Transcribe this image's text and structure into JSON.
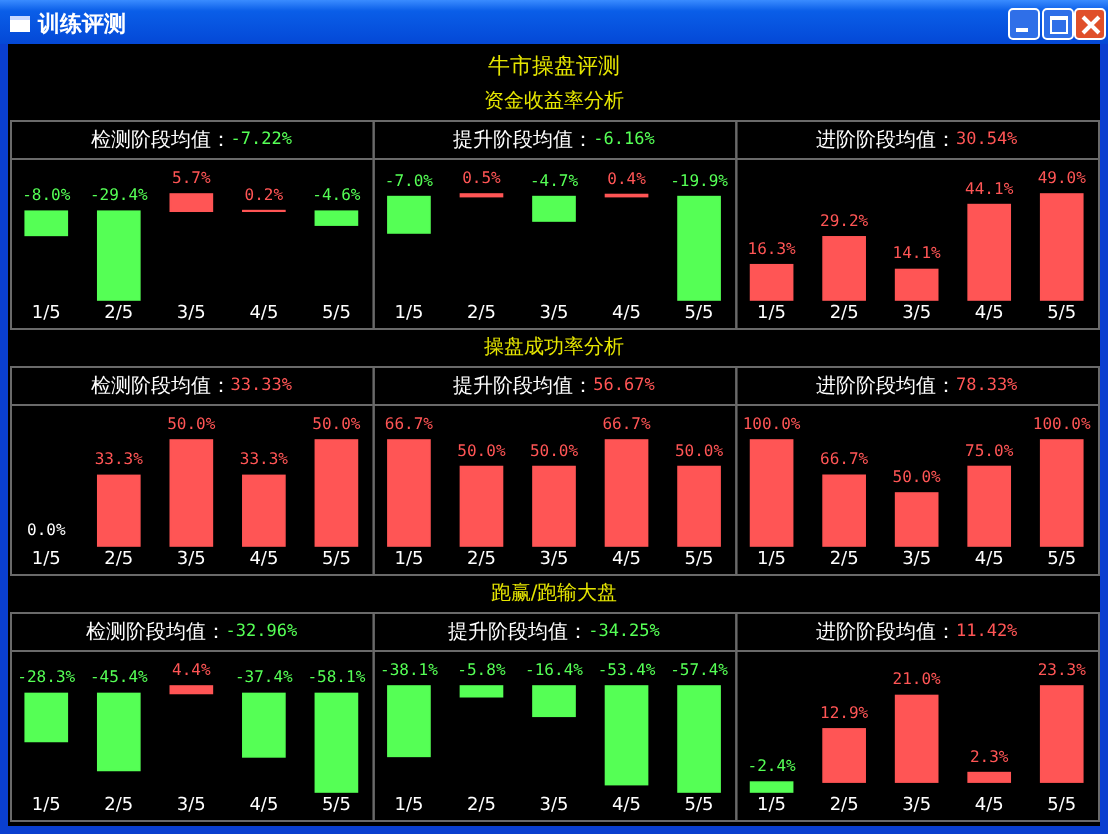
{
  "chart_data": [
    {
      "type": "other",
      "title": "训练评测"
    },
    {
      "type": "other",
      "title": "牛市操盘评测"
    },
    {
      "type": "other",
      "title": "资金收益率分析"
    },
    {
      "type": "bar",
      "title": "检测阶段均值：",
      "subtitle": "-7.22%",
      "categories": [
        "1/5",
        "2/5",
        "3/5",
        "4/5",
        "5/5"
      ],
      "values": [
        -8.0,
        -29.4,
        5.7,
        0.2,
        -4.6
      ],
      "colors": [
        "#55ff55",
        "#55ff55",
        "#ff5555",
        "#ff5555",
        "#55ff55"
      ],
      "value_labels": [
        "-8.0%",
        "-29.4%",
        "5.7%",
        "0.2%",
        "-4.6%"
      ]
    },
    {
      "type": "bar",
      "title": "提升阶段均值：",
      "subtitle": "-6.16%",
      "categories": [
        "1/5",
        "2/5",
        "3/5",
        "4/5",
        "5/5"
      ],
      "values": [
        -7.0,
        0.5,
        -4.7,
        0.4,
        -19.9
      ],
      "colors": [
        "#55ff55",
        "#ff5555",
        "#55ff55",
        "#ff5555",
        "#55ff55"
      ],
      "value_labels": [
        "-7.0%",
        "0.5%",
        "-4.7%",
        "0.4%",
        "-19.9%"
      ]
    },
    {
      "type": "bar",
      "title": "进阶阶段均值：",
      "subtitle": "30.54%",
      "categories": [
        "1/5",
        "2/5",
        "3/5",
        "4/5",
        "5/5"
      ],
      "values": [
        16.3,
        29.2,
        14.1,
        44.1,
        49.0
      ],
      "colors": [
        "#ff5555",
        "#ff5555",
        "#ff5555",
        "#ff5555",
        "#ff5555"
      ],
      "value_labels": [
        "16.3%",
        "29.2%",
        "14.1%",
        "44.1%",
        "49.0%"
      ]
    },
    {
      "type": "other",
      "title": "操盘成功率分析"
    },
    {
      "type": "bar",
      "title": "检测阶段均值：",
      "subtitle": "33.33%",
      "categories": [
        "1/5",
        "2/5",
        "3/5",
        "4/5",
        "5/5"
      ],
      "values": [
        0.0,
        33.3,
        50.0,
        33.3,
        50.0
      ],
      "colors": [
        "#ffffff",
        "#ff5555",
        "#ff5555",
        "#ff5555",
        "#ff5555"
      ],
      "value_labels": [
        "0.0%",
        "33.3%",
        "50.0%",
        "33.3%",
        "50.0%"
      ]
    },
    {
      "type": "bar",
      "title": "提升阶段均值：",
      "subtitle": "56.67%",
      "categories": [
        "1/5",
        "2/5",
        "3/5",
        "4/5",
        "5/5"
      ],
      "values": [
        66.7,
        50.0,
        50.0,
        66.7,
        50.0
      ],
      "colors": [
        "#ff5555",
        "#ff5555",
        "#ff5555",
        "#ff5555",
        "#ff5555"
      ],
      "value_labels": [
        "66.7%",
        "50.0%",
        "50.0%",
        "66.7%",
        "50.0%"
      ]
    },
    {
      "type": "bar",
      "title": "进阶阶段均值：",
      "subtitle": "78.33%",
      "categories": [
        "1/5",
        "2/5",
        "3/5",
        "4/5",
        "5/5"
      ],
      "values": [
        100.0,
        66.7,
        50.0,
        75.0,
        100.0
      ],
      "colors": [
        "#ff5555",
        "#ff5555",
        "#ff5555",
        "#ff5555",
        "#ff5555"
      ],
      "value_labels": [
        "100.0%",
        "66.7%",
        "50.0%",
        "75.0%",
        "100.0%"
      ]
    },
    {
      "type": "other",
      "title": "跑赢/跑输大盘"
    },
    {
      "type": "bar",
      "title": "检测阶段均值：",
      "subtitle": "-32.96%",
      "categories": [
        "1/5",
        "2/5",
        "3/5",
        "4/5",
        "5/5"
      ],
      "values": [
        -28.3,
        -45.4,
        4.4,
        -37.4,
        -58.1
      ],
      "colors": [
        "#55ff55",
        "#55ff55",
        "#ff5555",
        "#55ff55",
        "#55ff55"
      ],
      "value_labels": [
        "-28.3%",
        "-45.4%",
        "4.4%",
        "-37.4%",
        "-58.1%"
      ]
    },
    {
      "type": "bar",
      "title": "提升阶段均值：",
      "subtitle": "-34.25%",
      "categories": [
        "1/5",
        "2/5",
        "3/5",
        "4/5",
        "5/5"
      ],
      "values": [
        -38.1,
        -5.8,
        -16.4,
        -53.4,
        -57.4
      ],
      "colors": [
        "#55ff55",
        "#55ff55",
        "#55ff55",
        "#55ff55",
        "#55ff55"
      ],
      "value_labels": [
        "-38.1%",
        "-5.8%",
        "-16.4%",
        "-53.4%",
        "-57.4%"
      ]
    },
    {
      "type": "bar",
      "title": "进阶阶段均值：",
      "subtitle": "11.42%",
      "categories": [
        "1/5",
        "2/5",
        "3/5",
        "4/5",
        "5/5"
      ],
      "values": [
        -2.4,
        12.9,
        21.0,
        2.3,
        23.3
      ],
      "colors": [
        "#55ff55",
        "#ff5555",
        "#ff5555",
        "#ff5555",
        "#ff5555"
      ],
      "value_labels": [
        "-2.4%",
        "12.9%",
        "21.0%",
        "2.3%",
        "23.3%"
      ]
    }
  ]
}
